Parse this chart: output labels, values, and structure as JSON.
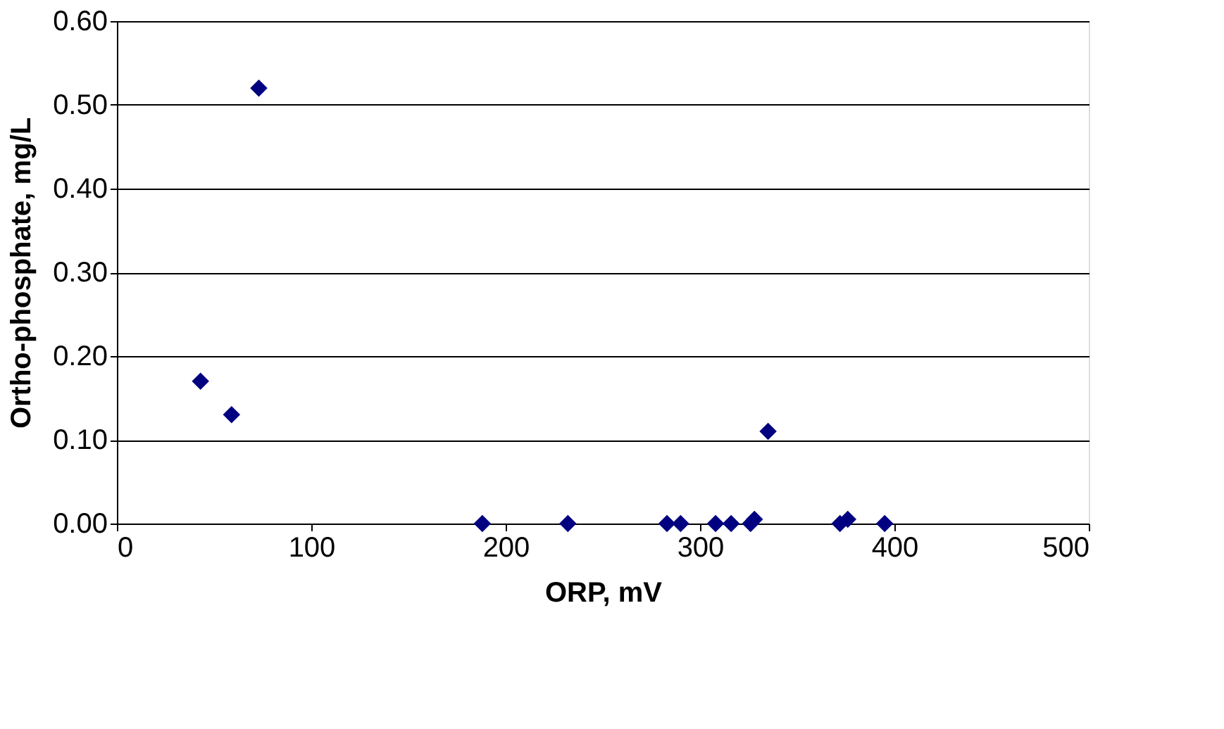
{
  "chart_data": {
    "type": "scatter",
    "xlabel": "ORP, mV",
    "ylabel": "Ortho-phosphate, mg/L",
    "x": [
      43,
      59,
      73,
      188,
      232,
      283,
      290,
      308,
      316,
      326,
      328,
      335,
      372,
      376,
      395
    ],
    "series": [
      {
        "color": "#000080",
        "values": [
          0.17,
          0.13,
          0.52,
          0,
          0,
          0,
          0,
          0,
          0,
          0,
          0.005,
          0.11,
          0,
          0.005,
          0
        ]
      }
    ],
    "marker": "diamond",
    "xlim": [
      0,
      500
    ],
    "xticks": [
      0,
      100,
      200,
      300,
      400,
      500
    ],
    "ylim": [
      0,
      0.6
    ],
    "yticks": [
      {
        "value": 0,
        "label": "0.00"
      },
      {
        "value": 0.1,
        "label": "0.10"
      },
      {
        "value": 0.2,
        "label": "0.20"
      },
      {
        "value": 0.3,
        "label": "0.30"
      },
      {
        "value": 0.4,
        "label": "0.40"
      },
      {
        "value": 0.5,
        "label": "0.50"
      },
      {
        "value": 0.6,
        "label": "0.60"
      }
    ],
    "grid": "y"
  }
}
